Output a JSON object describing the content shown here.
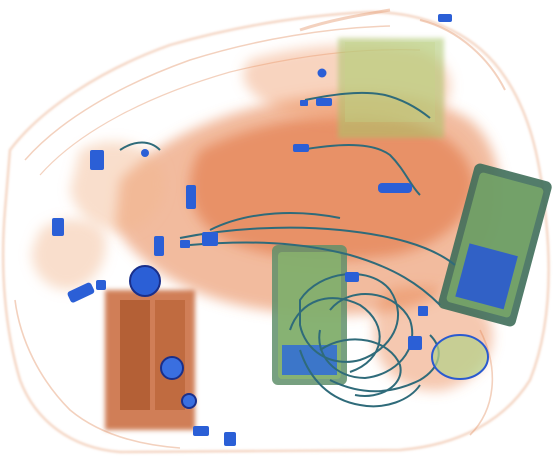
{
  "image": {
    "kind": "x-ray baggage scan",
    "palette": {
      "background": "#ffffff",
      "organic_light": "#f1b58f",
      "organic": "#e8844f",
      "organic_dense": "#c8683a",
      "inorganic_green": "#9cc46a",
      "metal_blue": "#2b5fd6",
      "metal_dark": "#1a2f8a",
      "cable": "#2f6b7a"
    },
    "objects": [
      {
        "name": "bag-outline"
      },
      {
        "name": "clothing-mass"
      },
      {
        "name": "electronics-board-left"
      },
      {
        "name": "electronics-board-right"
      },
      {
        "name": "cable-tangle"
      },
      {
        "name": "metal-fittings"
      },
      {
        "name": "battery-pack-bottom-left"
      }
    ]
  }
}
